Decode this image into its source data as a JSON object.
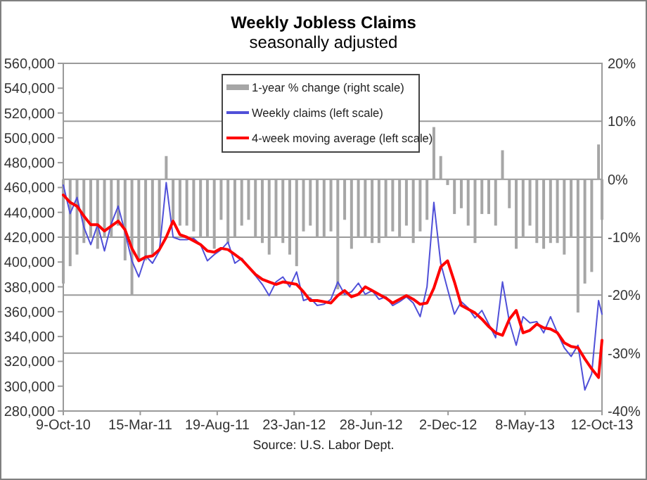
{
  "chart_data": {
    "type": "line",
    "title": "Weekly Jobless Claims",
    "subtitle": "seasonally adjusted",
    "annotations": [
      "Source: U.S. Labor Dept."
    ],
    "x": [
      "2010-10-09",
      "2010-10-23",
      "2010-11-06",
      "2010-11-20",
      "2010-12-04",
      "2010-12-18",
      "2011-01-01",
      "2011-01-15",
      "2011-01-29",
      "2011-02-12",
      "2011-02-26",
      "2011-03-12",
      "2011-03-26",
      "2011-04-09",
      "2011-04-23",
      "2011-05-07",
      "2011-05-21",
      "2011-06-04",
      "2011-06-18",
      "2011-07-02",
      "2011-07-16",
      "2011-07-30",
      "2011-08-13",
      "2011-08-27",
      "2011-09-10",
      "2011-09-24",
      "2011-10-08",
      "2011-10-22",
      "2011-11-05",
      "2011-11-19",
      "2011-12-03",
      "2011-12-17",
      "2011-12-31",
      "2012-01-14",
      "2012-01-28",
      "2012-02-11",
      "2012-02-25",
      "2012-03-10",
      "2012-03-24",
      "2012-04-07",
      "2012-04-21",
      "2012-05-05",
      "2012-05-19",
      "2012-06-02",
      "2012-06-16",
      "2012-06-30",
      "2012-07-14",
      "2012-07-28",
      "2012-08-11",
      "2012-08-25",
      "2012-09-08",
      "2012-09-22",
      "2012-10-06",
      "2012-10-20",
      "2012-11-03",
      "2012-11-17",
      "2012-12-01",
      "2012-12-15",
      "2012-12-29",
      "2013-01-12",
      "2013-01-26",
      "2013-02-09",
      "2013-02-23",
      "2013-03-09",
      "2013-03-23",
      "2013-04-06",
      "2013-04-20",
      "2013-05-04",
      "2013-05-18",
      "2013-06-01",
      "2013-06-15",
      "2013-06-29",
      "2013-07-13",
      "2013-07-27",
      "2013-08-10",
      "2013-08-24",
      "2013-09-07",
      "2013-09-21",
      "2013-10-05",
      "2013-10-12"
    ],
    "series": [
      {
        "name": "1-year % change (right scale)",
        "type": "bar",
        "axis": "y2",
        "color": "#a6a6a6",
        "values": [
          -18,
          -15,
          -13,
          -11,
          -10,
          -12,
          -10,
          -10,
          -8,
          -14,
          -20,
          -14,
          -14,
          -13,
          -10,
          4,
          -7,
          -8,
          -8,
          -9,
          -10,
          -10,
          -12,
          -7,
          -11,
          -10,
          -8,
          -7,
          -10,
          -11,
          -13,
          -10,
          -11,
          -13,
          -15,
          -9,
          -8,
          -10,
          -10,
          -9,
          -19,
          -7,
          -12,
          -10,
          -10,
          -11,
          -11,
          -10,
          -9,
          -10,
          -8,
          -11,
          -9,
          -7,
          9,
          4,
          -1,
          -6,
          -5,
          -8,
          -11,
          -6,
          -6,
          -8,
          5,
          -5,
          -12,
          -10,
          -8,
          -11,
          -12,
          -11,
          -11,
          -13,
          -10,
          -23,
          -18,
          -16,
          6,
          -7
        ]
      },
      {
        "name": "Weekly claims (left scale)",
        "color": "#5050d8",
        "values": [
          462000,
          439000,
          452000,
          428000,
          414000,
          430000,
          409000,
          431000,
          445000,
          424000,
          401000,
          388000,
          405000,
          399000,
          409000,
          464000,
          420000,
          418000,
          418000,
          419000,
          414000,
          401000,
          406000,
          410000,
          416000,
          399000,
          403000,
          396000,
          389000,
          382000,
          373000,
          384000,
          388000,
          380000,
          392000,
          369000,
          371000,
          365000,
          366000,
          370000,
          384000,
          374000,
          376000,
          383000,
          374000,
          377000,
          370000,
          372000,
          365000,
          368000,
          372000,
          367000,
          356000,
          380000,
          448000,
          399000,
          378000,
          358000,
          368000,
          363000,
          355000,
          361000,
          350000,
          339000,
          384000,
          352000,
          333000,
          356000,
          351000,
          352000,
          343000,
          356000,
          343000,
          331000,
          324000,
          333000,
          297000,
          310000,
          369000,
          358000
        ]
      },
      {
        "name": "4-week moving average (left scale)",
        "color": "#ff0000",
        "values": [
          454000,
          448000,
          445000,
          437000,
          430000,
          430000,
          425000,
          429000,
          433000,
          426000,
          411000,
          401000,
          404000,
          405000,
          410000,
          420000,
          433000,
          422000,
          420000,
          417000,
          414000,
          409000,
          408000,
          411000,
          410000,
          406000,
          402000,
          396000,
          390000,
          386000,
          384000,
          382000,
          384000,
          383000,
          382000,
          376000,
          369000,
          369000,
          368000,
          367000,
          373000,
          377000,
          372000,
          374000,
          380000,
          377000,
          374000,
          371000,
          367000,
          370000,
          373000,
          370000,
          366000,
          367000,
          379000,
          396000,
          401000,
          384000,
          365000,
          362000,
          359000,
          354000,
          348000,
          343000,
          341000,
          354000,
          361000,
          343000,
          345000,
          350000,
          347000,
          346000,
          343000,
          335000,
          332000,
          331000,
          322000,
          314000,
          307000,
          337000
        ]
      }
    ],
    "xlim": [
      "2010-10-09",
      "2013-10-12"
    ],
    "xticks": [
      {
        "value": "2010-10-09",
        "label": "9-Oct-10"
      },
      {
        "value": "2011-03-15",
        "label": "15-Mar-11"
      },
      {
        "value": "2011-08-19",
        "label": "19-Aug-11"
      },
      {
        "value": "2012-01-23",
        "label": "23-Jan-12"
      },
      {
        "value": "2012-06-28",
        "label": "28-Jun-12"
      },
      {
        "value": "2012-12-02",
        "label": "2-Dec-12"
      },
      {
        "value": "2013-05-08",
        "label": "8-May-13"
      },
      {
        "value": "2013-10-12",
        "label": "12-Oct-13"
      }
    ],
    "ylim": [
      280000,
      560000
    ],
    "yticks": [
      {
        "value": 280000,
        "label": "280,000"
      },
      {
        "value": 300000,
        "label": "300,000"
      },
      {
        "value": 320000,
        "label": "320,000"
      },
      {
        "value": 340000,
        "label": "340,000"
      },
      {
        "value": 360000,
        "label": "360,000"
      },
      {
        "value": 380000,
        "label": "380,000"
      },
      {
        "value": 400000,
        "label": "400,000"
      },
      {
        "value": 420000,
        "label": "420,000"
      },
      {
        "value": 440000,
        "label": "440,000"
      },
      {
        "value": 460000,
        "label": "460,000"
      },
      {
        "value": 480000,
        "label": "480,000"
      },
      {
        "value": 500000,
        "label": "500,000"
      },
      {
        "value": 520000,
        "label": "520,000"
      },
      {
        "value": 540000,
        "label": "540,000"
      },
      {
        "value": 560000,
        "label": "560,000"
      }
    ],
    "y2lim": [
      -40,
      20
    ],
    "y2ticks": [
      {
        "value": -40,
        "label": "-40%"
      },
      {
        "value": -30,
        "label": "-30%"
      },
      {
        "value": -20,
        "label": "-20%"
      },
      {
        "value": -10,
        "label": "-10%"
      },
      {
        "value": 0,
        "label": "0%"
      },
      {
        "value": 10,
        "label": "10%"
      },
      {
        "value": 20,
        "label": "20%"
      }
    ],
    "grid": "y2",
    "legend": "top",
    "marker": "none",
    "line_style": "solid"
  }
}
